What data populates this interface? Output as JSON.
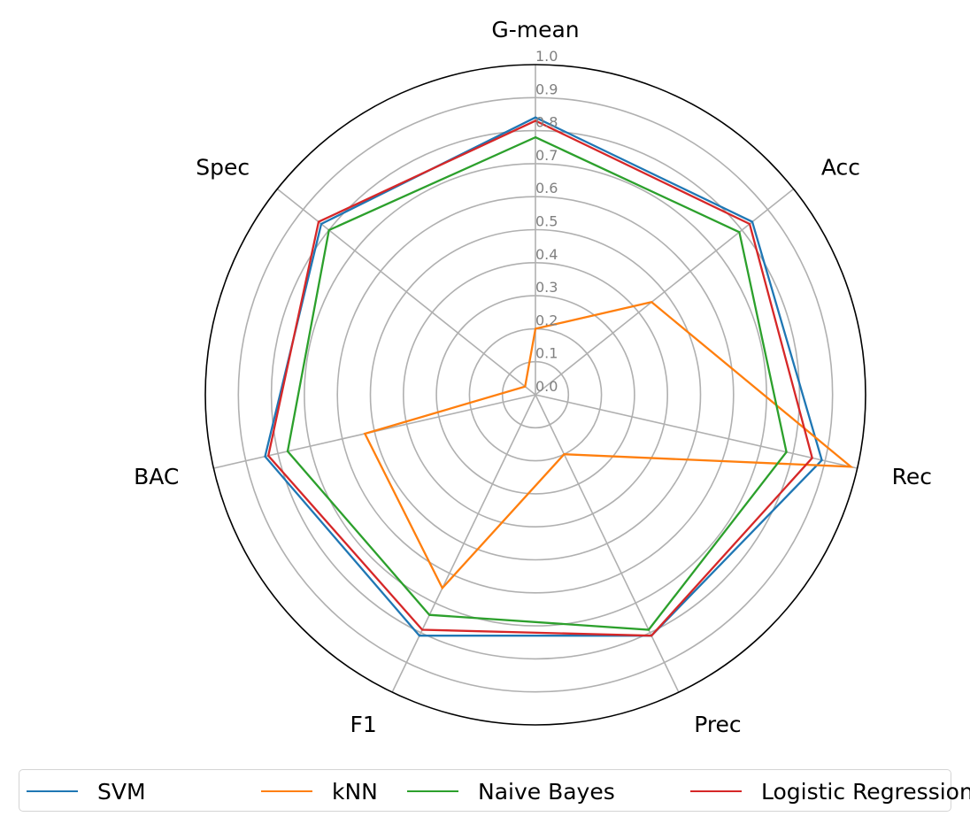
{
  "chart_data": {
    "type": "radar",
    "axes": [
      "G-mean",
      "Acc",
      "Rec",
      "Prec",
      "F1",
      "BAC",
      "Spec"
    ],
    "rlim": [
      0,
      1.0
    ],
    "r_ticks": [
      "0.0",
      "0.1",
      "0.2",
      "0.3",
      "0.4",
      "0.5",
      "0.6",
      "0.7",
      "0.8",
      "0.9",
      "1.0"
    ],
    "grid": true,
    "legend_position": "bottom",
    "series": [
      {
        "name": "SVM",
        "color": "#1f77b4",
        "values": [
          0.84,
          0.84,
          0.89,
          0.81,
          0.81,
          0.84,
          0.83
        ]
      },
      {
        "name": "kNN",
        "color": "#ff7f0e",
        "values": [
          0.2,
          0.45,
          0.98,
          0.2,
          0.65,
          0.53,
          0.04
        ]
      },
      {
        "name": "Naive Bayes",
        "color": "#2ca02c",
        "values": [
          0.78,
          0.79,
          0.78,
          0.79,
          0.74,
          0.77,
          0.8
        ]
      },
      {
        "name": "Logistic Regression",
        "color": "#d62728",
        "values": [
          0.83,
          0.83,
          0.86,
          0.81,
          0.79,
          0.83,
          0.84
        ]
      }
    ]
  }
}
